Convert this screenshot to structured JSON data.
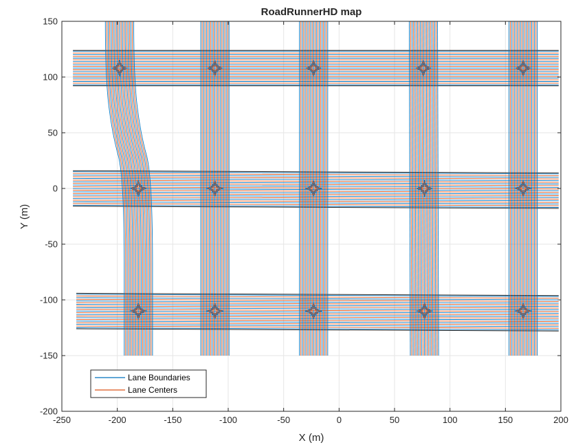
{
  "chart_data": {
    "type": "line",
    "title": "RoadRunnerHD map",
    "xlabel": "X (m)",
    "ylabel": "Y (m)",
    "xlim": [
      -250,
      200
    ],
    "ylim": [
      -200,
      150
    ],
    "xticks": [
      -250,
      -200,
      -150,
      -100,
      -50,
      0,
      50,
      100,
      150,
      200
    ],
    "yticks": [
      -200,
      -150,
      -100,
      -50,
      0,
      50,
      100,
      150
    ],
    "grid": true,
    "legend_position": "bottom-left",
    "series": [
      {
        "name": "Lane Boundaries",
        "color": "#0072BD"
      },
      {
        "name": "Lane Centers",
        "color": "#D95319"
      }
    ],
    "roads": {
      "horizontal": [
        {
          "x": [
            -240,
            198
          ],
          "y": [
            108,
            108
          ]
        },
        {
          "x": [
            -240,
            198
          ],
          "y": [
            0,
            -2
          ]
        },
        {
          "x": [
            -237,
            198
          ],
          "y": [
            -110,
            -112
          ]
        }
      ],
      "vertical": [
        {
          "y": [
            150,
            100,
            50,
            10,
            -150
          ],
          "x": [
            -198,
            -198,
            -192,
            -181,
            -181
          ]
        },
        {
          "y": [
            150,
            -150
          ],
          "x": [
            -112,
            -112
          ]
        },
        {
          "y": [
            150,
            -150
          ],
          "x": [
            -23,
            -23
          ]
        },
        {
          "y": [
            150,
            -150
          ],
          "x": [
            76,
            77
          ]
        },
        {
          "y": [
            150,
            -150
          ],
          "x": [
            166,
            166
          ]
        }
      ]
    }
  }
}
